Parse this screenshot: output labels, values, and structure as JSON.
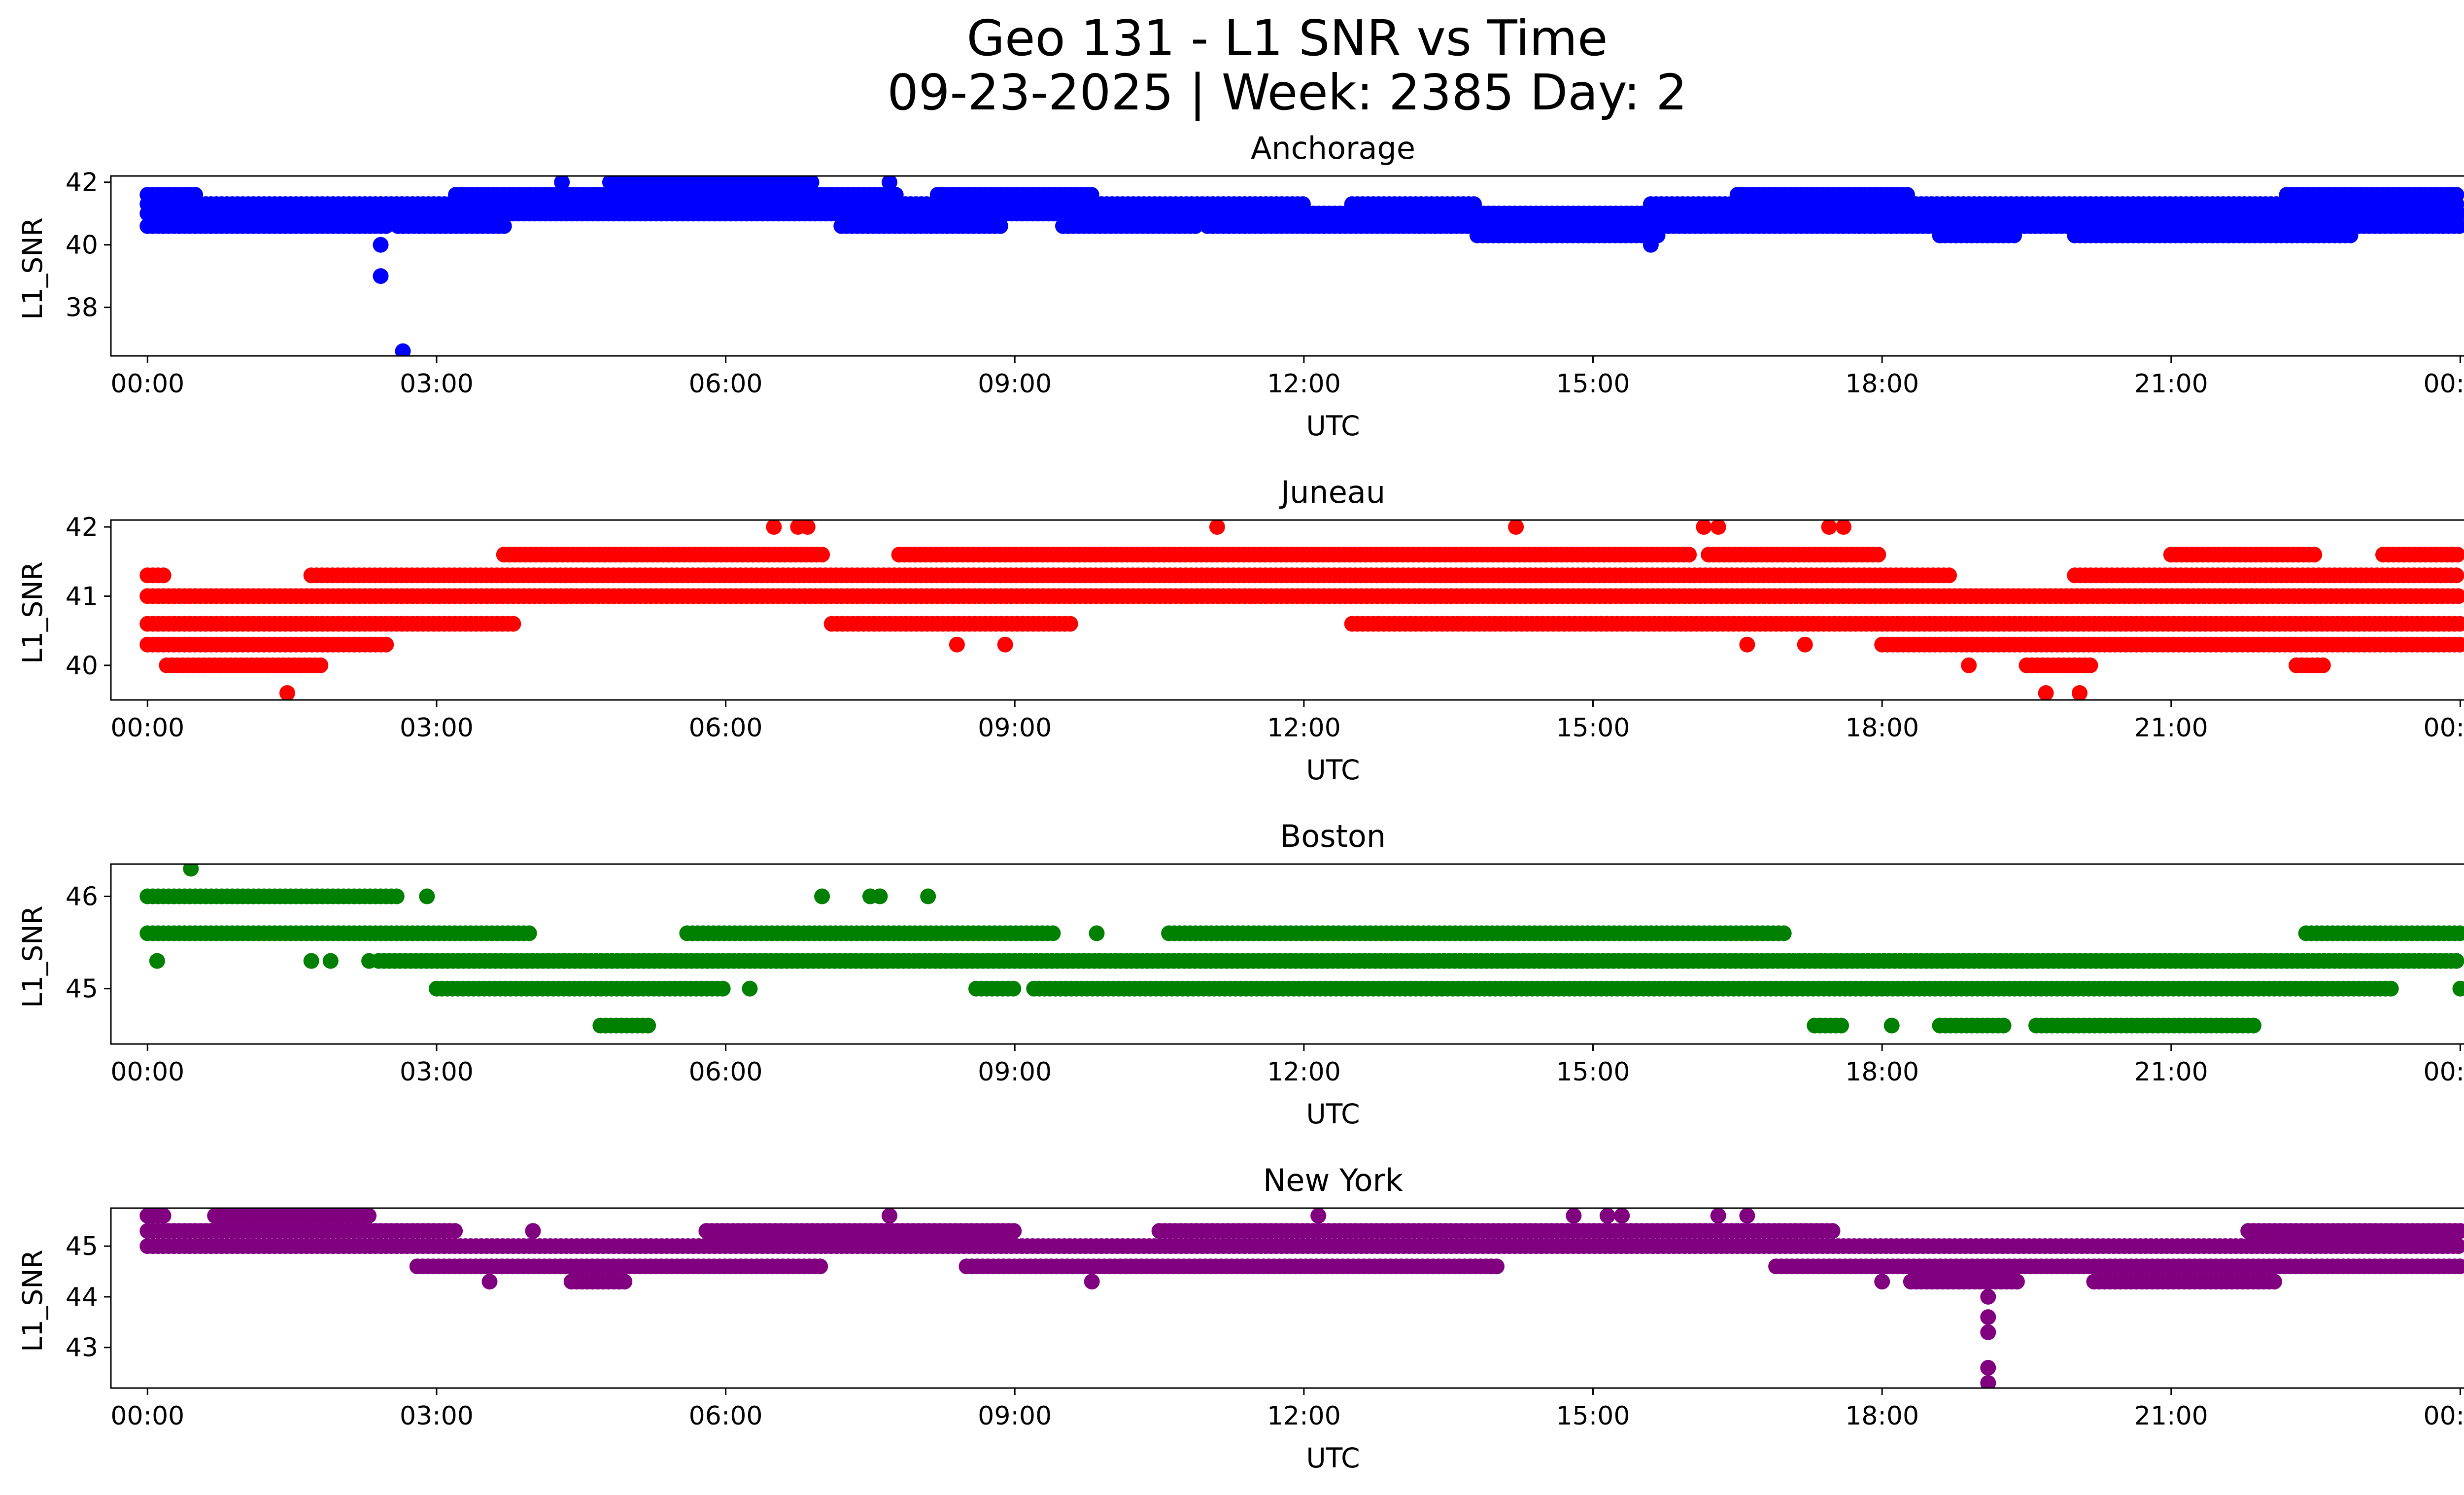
{
  "figure": {
    "title_line1": "Geo 131 - L1 SNR vs Time",
    "title_line2": "09-23-2025 | Week: 2385 Day: 2"
  },
  "chart_data": [
    {
      "type": "scatter",
      "title": "Anchorage",
      "xlabel": "UTC",
      "ylabel": "L1_SNR",
      "color": "#0000ff",
      "xlim_hours": [
        -0.38,
        25.0
      ],
      "ylim": [
        36.45,
        42.2
      ],
      "xticks": [
        0,
        3,
        6,
        9,
        12,
        15,
        18,
        21,
        24
      ],
      "xtick_labels": [
        "00:00",
        "03:00",
        "06:00",
        "09:00",
        "12:00",
        "15:00",
        "18:00",
        "21:00",
        "00:00"
      ],
      "yticks": [
        38,
        40,
        42
      ],
      "ytick_labels": [
        "38",
        "40",
        "42"
      ],
      "levels": [
        {
          "y": 40.3,
          "segments": [
            [
              13.8,
              15.7
            ],
            [
              18.6,
              19.4
            ],
            [
              20.0,
              22.9
            ]
          ]
        },
        {
          "y": 40.6,
          "segments": [
            [
              0.0,
              2.5
            ],
            [
              2.6,
              3.7
            ],
            [
              7.2,
              8.9
            ],
            [
              9.5,
              10.9
            ],
            [
              11.0,
              18.6
            ],
            [
              18.6,
              24.0
            ]
          ]
        },
        {
          "y": 41.0,
          "segments": [
            [
              0.0,
              24.0
            ]
          ]
        },
        {
          "y": 41.3,
          "segments": [
            [
              0.0,
              12.0
            ],
            [
              12.5,
              13.8
            ],
            [
              15.6,
              24.0
            ]
          ]
        },
        {
          "y": 41.6,
          "segments": [
            [
              0.0,
              0.5
            ],
            [
              3.2,
              7.8
            ],
            [
              8.2,
              9.8
            ],
            [
              16.5,
              18.3
            ],
            [
              22.2,
              24.0
            ]
          ]
        },
        {
          "y": 42.0,
          "segments": [
            [
              4.8,
              6.9
            ]
          ]
        }
      ],
      "points": [
        [
          2.42,
          39.0
        ],
        [
          2.42,
          40.0
        ],
        [
          2.65,
          36.6
        ],
        [
          15.6,
          40.0
        ],
        [
          4.3,
          42.0
        ],
        [
          7.7,
          42.0
        ],
        [
          0.4,
          41.6
        ]
      ]
    },
    {
      "type": "scatter",
      "title": "Juneau",
      "xlabel": "UTC",
      "ylabel": "L1_SNR",
      "color": "#ff0000",
      "xlim_hours": [
        -0.38,
        25.0
      ],
      "ylim": [
        39.5,
        42.1
      ],
      "xticks": [
        0,
        3,
        6,
        9,
        12,
        15,
        18,
        21,
        24
      ],
      "xtick_labels": [
        "00:00",
        "03:00",
        "06:00",
        "09:00",
        "12:00",
        "15:00",
        "18:00",
        "21:00",
        "00:00"
      ],
      "yticks": [
        40,
        41,
        42
      ],
      "ytick_labels": [
        "40",
        "41",
        "42"
      ],
      "levels": [
        {
          "y": 40.0,
          "segments": [
            [
              0.2,
              1.8
            ],
            [
              19.5,
              20.2
            ],
            [
              22.3,
              22.6
            ]
          ]
        },
        {
          "y": 40.3,
          "segments": [
            [
              0.0,
              2.5
            ],
            [
              18.0,
              24.0
            ]
          ]
        },
        {
          "y": 40.6,
          "segments": [
            [
              0.0,
              3.8
            ],
            [
              7.1,
              9.6
            ],
            [
              12.5,
              24.0
            ]
          ]
        },
        {
          "y": 41.0,
          "segments": [
            [
              0.0,
              24.0
            ]
          ]
        },
        {
          "y": 41.3,
          "segments": [
            [
              0.0,
              0.2
            ],
            [
              1.7,
              18.7
            ],
            [
              20.0,
              24.0
            ]
          ]
        },
        {
          "y": 41.6,
          "segments": [
            [
              3.7,
              7.0
            ],
            [
              7.8,
              16.0
            ],
            [
              16.2,
              18.0
            ],
            [
              21.0,
              22.5
            ],
            [
              23.2,
              24.0
            ]
          ]
        }
      ],
      "points": [
        [
          1.45,
          39.6
        ],
        [
          19.7,
          39.6
        ],
        [
          20.05,
          39.6
        ],
        [
          6.5,
          42.0
        ],
        [
          6.75,
          42.0
        ],
        [
          6.85,
          42.0
        ],
        [
          11.1,
          42.0
        ],
        [
          14.2,
          42.0
        ],
        [
          16.15,
          42.0
        ],
        [
          16.3,
          42.0
        ],
        [
          17.45,
          42.0
        ],
        [
          17.6,
          42.0
        ],
        [
          8.4,
          40.3
        ],
        [
          8.9,
          40.3
        ],
        [
          16.6,
          40.3
        ],
        [
          17.2,
          40.3
        ],
        [
          18.9,
          40.0
        ]
      ]
    },
    {
      "type": "scatter",
      "title": "Boston",
      "xlabel": "UTC",
      "ylabel": "L1_SNR",
      "color": "#008000",
      "xlim_hours": [
        -0.38,
        25.0
      ],
      "ylim": [
        44.4,
        46.35
      ],
      "xticks": [
        0,
        3,
        6,
        9,
        12,
        15,
        18,
        21,
        24
      ],
      "xtick_labels": [
        "00:00",
        "03:00",
        "06:00",
        "09:00",
        "12:00",
        "15:00",
        "18:00",
        "21:00",
        "00:00"
      ],
      "yticks": [
        45,
        46
      ],
      "ytick_labels": [
        "45",
        "46"
      ],
      "levels": [
        {
          "y": 44.6,
          "segments": [
            [
              4.7,
              5.2
            ],
            [
              17.3,
              17.6
            ],
            [
              18.6,
              19.3
            ],
            [
              19.6,
              21.9
            ]
          ]
        },
        {
          "y": 45.0,
          "segments": [
            [
              3.0,
              6.0
            ],
            [
              8.6,
              9.0
            ],
            [
              9.2,
              23.3
            ]
          ]
        },
        {
          "y": 45.3,
          "segments": [
            [
              2.4,
              24.0
            ]
          ]
        },
        {
          "y": 45.6,
          "segments": [
            [
              0.0,
              4.0
            ],
            [
              5.6,
              9.4
            ],
            [
              10.6,
              17.0
            ],
            [
              22.4,
              24.0
            ]
          ]
        },
        {
          "y": 46.0,
          "segments": [
            [
              0.0,
              2.6
            ]
          ]
        }
      ],
      "points": [
        [
          0.45,
          46.3
        ],
        [
          7.0,
          46.0
        ],
        [
          7.5,
          46.0
        ],
        [
          7.6,
          46.0
        ],
        [
          8.1,
          46.0
        ],
        [
          2.9,
          46.0
        ],
        [
          0.1,
          45.3
        ],
        [
          1.7,
          45.3
        ],
        [
          1.9,
          45.3
        ],
        [
          2.3,
          45.3
        ],
        [
          6.25,
          45.0
        ],
        [
          24.0,
          45.0
        ],
        [
          9.85,
          45.6
        ],
        [
          18.1,
          44.6
        ]
      ]
    },
    {
      "type": "scatter",
      "title": "New York",
      "xlabel": "UTC",
      "ylabel": "L1_SNR",
      "color": "#800080",
      "xlim_hours": [
        -0.38,
        25.0
      ],
      "ylim": [
        42.2,
        45.75
      ],
      "xticks": [
        0,
        3,
        6,
        9,
        12,
        15,
        18,
        21,
        24
      ],
      "xtick_labels": [
        "00:00",
        "03:00",
        "06:00",
        "09:00",
        "12:00",
        "15:00",
        "18:00",
        "21:00",
        "00:00"
      ],
      "yticks": [
        43,
        44,
        45
      ],
      "ytick_labels": [
        "43",
        "44",
        "45"
      ],
      "levels": [
        {
          "y": 44.3,
          "segments": [
            [
              4.4,
              5.0
            ],
            [
              18.3,
              19.4
            ],
            [
              20.2,
              22.1
            ]
          ]
        },
        {
          "y": 44.6,
          "segments": [
            [
              2.8,
              7.0
            ],
            [
              8.5,
              14.0
            ],
            [
              16.9,
              24.0
            ]
          ]
        },
        {
          "y": 45.0,
          "segments": [
            [
              0.0,
              24.0
            ]
          ]
        },
        {
          "y": 45.3,
          "segments": [
            [
              0.0,
              3.2
            ],
            [
              5.8,
              9.0
            ],
            [
              10.5,
              17.5
            ],
            [
              21.8,
              24.0
            ]
          ]
        },
        {
          "y": 45.6,
          "segments": [
            [
              0.0,
              0.2
            ],
            [
              0.7,
              2.3
            ]
          ]
        }
      ],
      "points": [
        [
          19.1,
          42.3
        ],
        [
          19.1,
          42.6
        ],
        [
          19.1,
          43.3
        ],
        [
          19.1,
          43.6
        ],
        [
          19.1,
          44.0
        ],
        [
          3.55,
          44.3
        ],
        [
          9.8,
          44.3
        ],
        [
          7.7,
          45.6
        ],
        [
          12.15,
          45.6
        ],
        [
          14.8,
          45.6
        ],
        [
          15.15,
          45.6
        ],
        [
          15.3,
          45.6
        ],
        [
          16.3,
          45.6
        ],
        [
          16.6,
          45.6
        ],
        [
          18.0,
          44.3
        ],
        [
          5.8,
          45.3
        ],
        [
          4.0,
          45.3
        ],
        [
          18.8,
          44.3
        ]
      ]
    }
  ]
}
